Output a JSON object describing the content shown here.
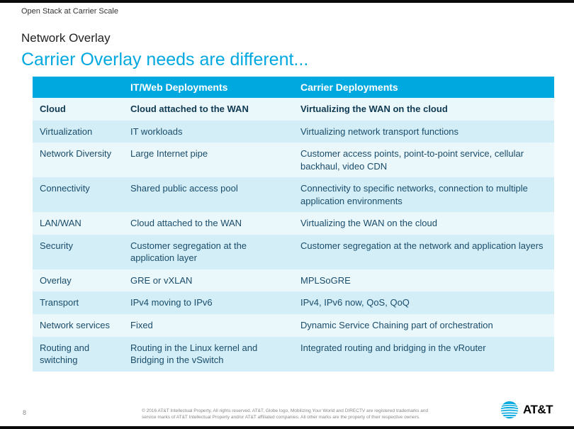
{
  "header_label": "Open Stack at Carrier Scale",
  "subtitle": "Network Overlay",
  "title": "Carrier Overlay needs are different...",
  "page_number": "8",
  "footer_text": "© 2016 AT&T Intellectual Property. All rights reserved. AT&T, Globe logo, Mobilizing Your World and DIRECTV are registered trademarks and service marks of AT&T Intellectual Property and/or AT&T affiliated companies. All other marks are the property of their respective owners.",
  "logo_text": "AT&T",
  "table": {
    "columns": [
      "",
      "IT/Web Deployments",
      "Carrier Deployments"
    ],
    "header_bg": "#00a8e0",
    "header_color": "#ffffff",
    "row_odd_bg": "#eaf7fb",
    "row_even_bg": "#d3eef7",
    "cell_color": "#1a4d6b",
    "rows": [
      {
        "bold": true,
        "cells": [
          "Cloud",
          "Cloud attached to the WAN",
          "Virtualizing the WAN on the cloud"
        ]
      },
      {
        "bold": false,
        "cells": [
          "Virtualization",
          "IT workloads",
          "Virtualizing network transport functions"
        ]
      },
      {
        "bold": false,
        "cells": [
          "Network Diversity",
          "Large Internet pipe",
          "Customer access points, point-to-point service, cellular backhaul, video CDN"
        ]
      },
      {
        "bold": false,
        "cells": [
          "Connectivity",
          "Shared public access pool",
          "Connectivity to specific networks, connection to multiple application environments"
        ]
      },
      {
        "bold": false,
        "cells": [
          "LAN/WAN",
          "Cloud attached to the WAN",
          "Virtualizing the WAN on the cloud"
        ]
      },
      {
        "bold": false,
        "cells": [
          "Security",
          "Customer segregation at the application layer",
          "Customer segregation at the network and application layers"
        ]
      },
      {
        "bold": false,
        "cells": [
          "Overlay",
          "GRE or vXLAN",
          "MPLSoGRE"
        ]
      },
      {
        "bold": false,
        "cells": [
          "Transport",
          "IPv4 moving to IPv6",
          "IPv4, IPv6 now, QoS, QoQ"
        ]
      },
      {
        "bold": false,
        "cells": [
          "Network services",
          "Fixed",
          "Dynamic Service Chaining part of orchestration"
        ]
      },
      {
        "bold": false,
        "cells": [
          "Routing and switching",
          "Routing in the Linux kernel and Bridging in the vSwitch",
          "Integrated routing and bridging in the vRouter"
        ]
      }
    ]
  },
  "colors": {
    "accent": "#00a8e0",
    "text_dark": "#222",
    "text_muted": "#888"
  }
}
